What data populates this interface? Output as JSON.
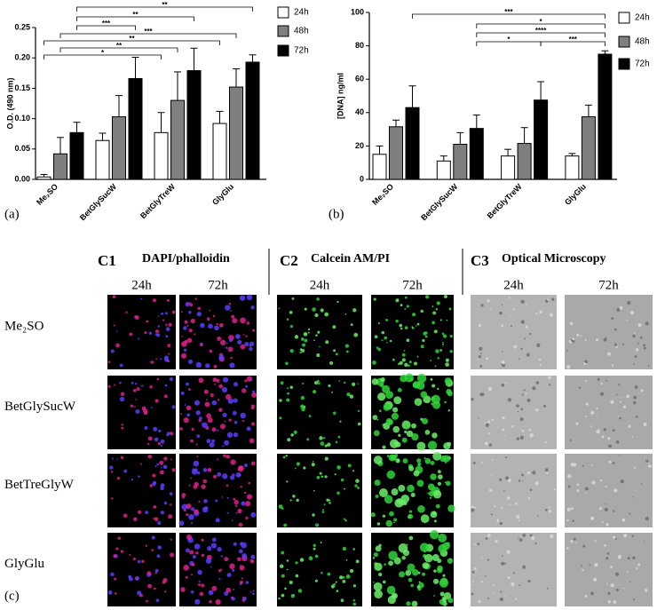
{
  "chart_data": [
    {
      "type": "bar",
      "panel_label": "(a)",
      "y_label": "O.D. (490 nm)",
      "categories": [
        "Me₂SO",
        "BetGlySucW",
        "BetGlyTreW",
        "GlyGlu"
      ],
      "series": [
        {
          "name": "24h",
          "color": "#ffffff",
          "values": [
            0.004,
            0.064,
            0.077,
            0.092
          ],
          "errors": [
            0.004,
            0.012,
            0.033,
            0.02
          ]
        },
        {
          "name": "48h",
          "color": "#7f7f7f",
          "values": [
            0.042,
            0.103,
            0.13,
            0.152
          ],
          "errors": [
            0.027,
            0.035,
            0.047,
            0.03
          ]
        },
        {
          "name": "72h",
          "color": "#000000",
          "values": [
            0.077,
            0.166,
            0.179,
            0.193
          ],
          "errors": [
            0.017,
            0.035,
            0.037,
            0.012
          ]
        }
      ],
      "ylim": [
        0,
        0.25
      ],
      "yticks": [
        {
          "value": 0,
          "label": "0.00"
        },
        {
          "value": 0.05,
          "label": "0.05"
        },
        {
          "value": 0.1,
          "label": "0.10"
        },
        {
          "value": 0.15,
          "label": "0.15"
        },
        {
          "value": 0.2,
          "label": "0.20"
        },
        {
          "value": 0.25,
          "label": "0.25"
        }
      ],
      "annotations": [
        "**",
        "**",
        "***",
        "***",
        "**",
        "**",
        "*"
      ],
      "legend": "right"
    },
    {
      "type": "bar",
      "panel_label": "(b)",
      "y_label": "[DNA] ng/ml",
      "categories": [
        "Me₂SO",
        "BetGlySucW",
        "BetGlyTreW",
        "GlyGlu"
      ],
      "series": [
        {
          "name": "24h",
          "color": "#ffffff",
          "values": [
            15,
            11,
            14,
            14
          ],
          "errors": [
            5,
            3,
            4,
            1.5
          ]
        },
        {
          "name": "48h",
          "color": "#7f7f7f",
          "values": [
            31.5,
            21,
            21.5,
            37.5
          ],
          "errors": [
            4,
            7,
            9.5,
            7
          ]
        },
        {
          "name": "72h",
          "color": "#000000",
          "values": [
            43,
            30.5,
            47.5,
            75
          ],
          "errors": [
            13,
            8,
            11,
            2
          ]
        }
      ],
      "ylim": [
        0,
        100
      ],
      "yticks": [
        0,
        20,
        40,
        60,
        80,
        100
      ],
      "annotations": [
        "***",
        "*",
        "****",
        "*",
        "***"
      ],
      "legend": "right"
    }
  ],
  "panels": {
    "label": "(c)",
    "columns": [
      {
        "id": "C1",
        "title": "DAPI/phalloidin",
        "times": [
          "24h",
          "72h"
        ]
      },
      {
        "id": "C2",
        "title": "Calcein AM/PI",
        "times": [
          "24h",
          "72h"
        ]
      },
      {
        "id": "C3",
        "title": "Optical Microscopy",
        "times": [
          "24h",
          "72h"
        ]
      }
    ],
    "rows": [
      "Me₂SO",
      "BetGlySucW",
      "BetTreGlyW",
      "GlyGlu"
    ]
  }
}
